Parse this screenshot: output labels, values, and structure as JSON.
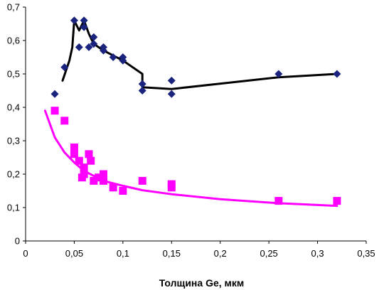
{
  "chart_data": {
    "type": "scatter",
    "title": "",
    "xlabel": "Толщина Ge, мкм",
    "ylabel": "",
    "xlim": [
      0,
      0.35
    ],
    "ylim": [
      0,
      0.7
    ],
    "grid": false,
    "legend": "none",
    "x_ticks": [
      {
        "value": 0,
        "label": "0"
      },
      {
        "value": 0.05,
        "label": "0,05"
      },
      {
        "value": 0.1,
        "label": "0,1"
      },
      {
        "value": 0.15,
        "label": "0,15"
      },
      {
        "value": 0.2,
        "label": "0,2"
      },
      {
        "value": 0.25,
        "label": "0,25"
      },
      {
        "value": 0.3,
        "label": "0,3"
      },
      {
        "value": 0.35,
        "label": "0,35"
      }
    ],
    "y_ticks": [
      {
        "value": 0,
        "label": "0"
      },
      {
        "value": 0.1,
        "label": "0,1"
      },
      {
        "value": 0.2,
        "label": "0,2"
      },
      {
        "value": 0.3,
        "label": "0,3"
      },
      {
        "value": 0.4,
        "label": "0,4"
      },
      {
        "value": 0.5,
        "label": "0,5"
      },
      {
        "value": 0.6,
        "label": "0,6"
      },
      {
        "value": 0.7,
        "label": "0,7"
      }
    ],
    "series": [
      {
        "marker": "diamond",
        "color": "#1a237e",
        "points": [
          [
            0.03,
            0.44
          ],
          [
            0.04,
            0.52
          ],
          [
            0.05,
            0.66
          ],
          [
            0.055,
            0.58
          ],
          [
            0.06,
            0.66
          ],
          [
            0.06,
            0.64
          ],
          [
            0.065,
            0.58
          ],
          [
            0.07,
            0.61
          ],
          [
            0.07,
            0.59
          ],
          [
            0.08,
            0.58
          ],
          [
            0.08,
            0.57
          ],
          [
            0.09,
            0.55
          ],
          [
            0.1,
            0.55
          ],
          [
            0.1,
            0.54
          ],
          [
            0.12,
            0.47
          ],
          [
            0.12,
            0.45
          ],
          [
            0.15,
            0.48
          ],
          [
            0.15,
            0.44
          ],
          [
            0.26,
            0.5
          ],
          [
            0.32,
            0.5
          ]
        ],
        "trend": {
          "color": "#000000",
          "points": [
            [
              0.038,
              0.48
            ],
            [
              0.045,
              0.54
            ],
            [
              0.048,
              0.58
            ],
            [
              0.05,
              0.66
            ],
            [
              0.055,
              0.63
            ],
            [
              0.06,
              0.66
            ],
            [
              0.065,
              0.62
            ],
            [
              0.07,
              0.59
            ],
            [
              0.08,
              0.57
            ],
            [
              0.1,
              0.54
            ],
            [
              0.12,
              0.5
            ],
            [
              0.12,
              0.46
            ],
            [
              0.15,
              0.455
            ],
            [
              0.26,
              0.49
            ],
            [
              0.32,
              0.5
            ]
          ]
        }
      },
      {
        "marker": "square",
        "color": "#ff00ff",
        "points": [
          [
            0.03,
            0.39
          ],
          [
            0.04,
            0.36
          ],
          [
            0.05,
            0.28
          ],
          [
            0.05,
            0.26
          ],
          [
            0.055,
            0.24
          ],
          [
            0.058,
            0.19
          ],
          [
            0.06,
            0.2
          ],
          [
            0.06,
            0.22
          ],
          [
            0.065,
            0.26
          ],
          [
            0.067,
            0.24
          ],
          [
            0.07,
            0.18
          ],
          [
            0.075,
            0.19
          ],
          [
            0.08,
            0.2
          ],
          [
            0.08,
            0.18
          ],
          [
            0.09,
            0.16
          ],
          [
            0.1,
            0.15
          ],
          [
            0.12,
            0.18
          ],
          [
            0.15,
            0.17
          ],
          [
            0.15,
            0.16
          ],
          [
            0.26,
            0.12
          ],
          [
            0.32,
            0.12
          ]
        ],
        "trend": {
          "color": "#ff00ff",
          "points": [
            [
              0.02,
              0.39
            ],
            [
              0.03,
              0.31
            ],
            [
              0.04,
              0.265
            ],
            [
              0.05,
              0.235
            ],
            [
              0.06,
              0.21
            ],
            [
              0.08,
              0.18
            ],
            [
              0.1,
              0.165
            ],
            [
              0.12,
              0.152
            ],
            [
              0.15,
              0.14
            ],
            [
              0.2,
              0.125
            ],
            [
              0.26,
              0.113
            ],
            [
              0.32,
              0.105
            ]
          ]
        }
      }
    ]
  }
}
